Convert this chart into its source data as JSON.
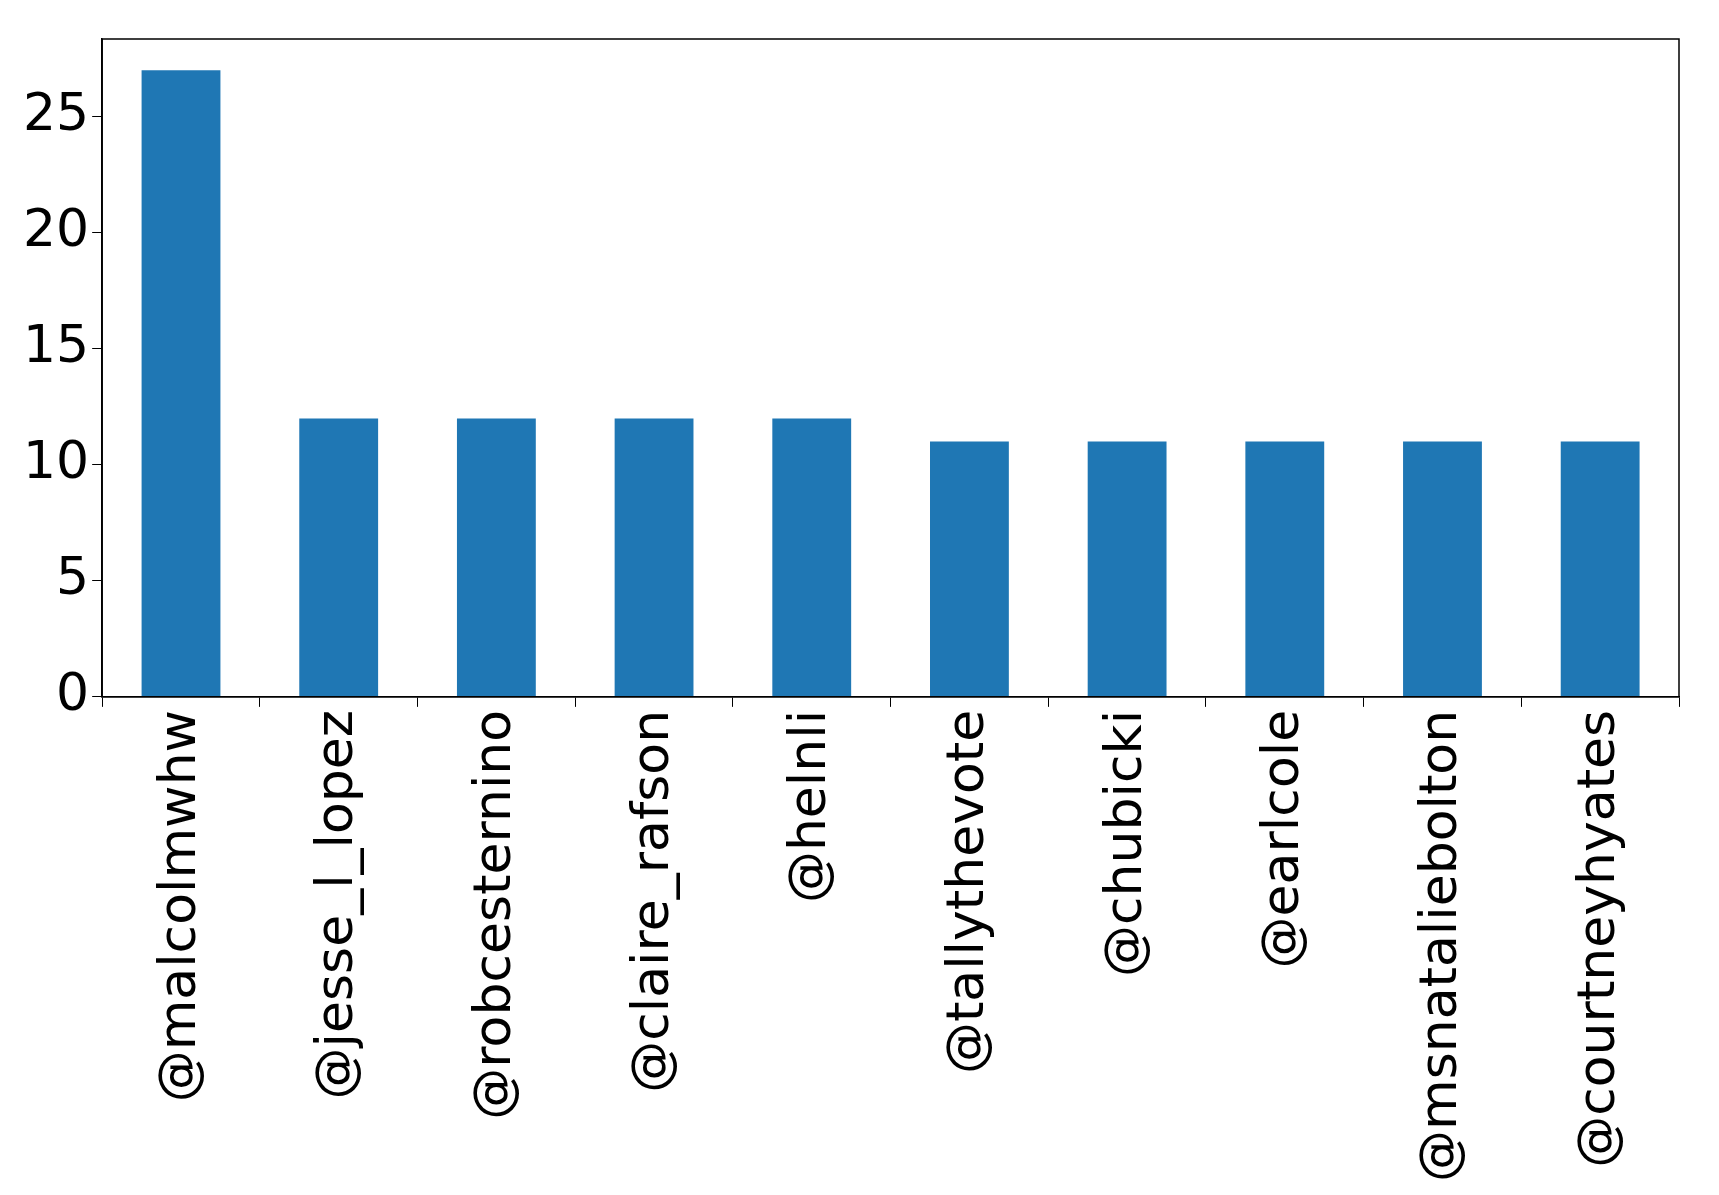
{
  "chart_data": {
    "type": "bar",
    "categories": [
      "@malcolmwhw",
      "@jesse_l_lopez",
      "@robcesternino",
      "@claire_rafson",
      "@helnli",
      "@tallythevote",
      "@chubicki",
      "@earlcole",
      "@msnataliebolton",
      "@courtneyhyates"
    ],
    "values": [
      27,
      12,
      12,
      12,
      12,
      11,
      11,
      11,
      11,
      11
    ],
    "color": "#1f77b4",
    "ylim": [
      0,
      28.35
    ],
    "yticks": [
      0,
      5,
      10,
      15,
      20,
      25
    ],
    "grid": false,
    "legend": false
  }
}
